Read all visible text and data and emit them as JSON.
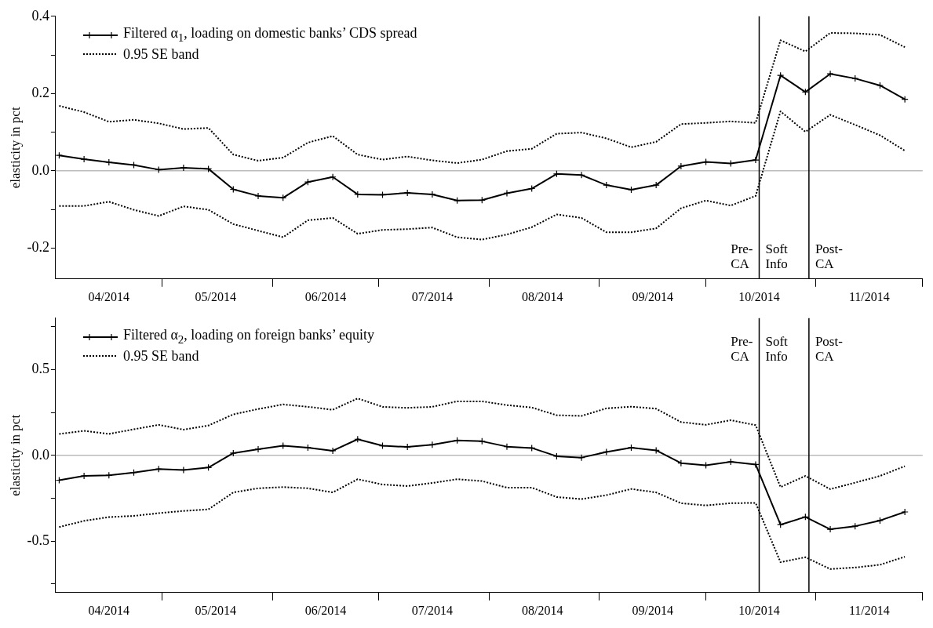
{
  "chart_data": [
    {
      "type": "line",
      "ylabel": "elasticity in pct",
      "legend": "top left",
      "x": [
        "2014-04-02",
        "2014-04-09",
        "2014-04-16",
        "2014-04-23",
        "2014-04-30",
        "2014-05-07",
        "2014-05-14",
        "2014-05-21",
        "2014-05-28",
        "2014-06-04",
        "2014-06-11",
        "2014-06-18",
        "2014-06-25",
        "2014-07-02",
        "2014-07-09",
        "2014-07-16",
        "2014-07-23",
        "2014-07-30",
        "2014-08-06",
        "2014-08-13",
        "2014-08-20",
        "2014-08-27",
        "2014-09-03",
        "2014-09-10",
        "2014-09-17",
        "2014-09-24",
        "2014-10-01",
        "2014-10-08",
        "2014-10-15",
        "2014-10-22",
        "2014-10-29",
        "2014-11-05",
        "2014-11-12",
        "2014-11-19",
        "2014-11-26"
      ],
      "xlim": [
        "2014-04-01",
        "2014-12-01"
      ],
      "xticks": [
        {
          "value": "2014-05-01",
          "label": null
        },
        {
          "value": "2014-06-01",
          "label": null
        },
        {
          "value": "2014-07-01",
          "label": null
        },
        {
          "value": "2014-08-01",
          "label": null
        },
        {
          "value": "2014-09-01",
          "label": null
        },
        {
          "value": "2014-10-01",
          "label": null
        },
        {
          "value": "2014-11-01",
          "label": null
        },
        {
          "value": "2014-12-01",
          "label": null
        },
        {
          "value": "2014-04-16",
          "label": "04/2014"
        },
        {
          "value": "2014-05-16",
          "label": "05/2014"
        },
        {
          "value": "2014-06-16",
          "label": "06/2014"
        },
        {
          "value": "2014-07-16",
          "label": "07/2014"
        },
        {
          "value": "2014-08-16",
          "label": "08/2014"
        },
        {
          "value": "2014-09-16",
          "label": "09/2014"
        },
        {
          "value": "2014-10-16",
          "label": "10/2014"
        },
        {
          "value": "2014-11-16",
          "label": "11/2014"
        }
      ],
      "ylim": [
        -0.28,
        0.4
      ],
      "yticks": [
        {
          "value": -0.2,
          "label": "-0.2"
        },
        {
          "value": -0.1,
          "label": null
        },
        {
          "value": 0,
          "label": "0.0"
        },
        {
          "value": 0.1,
          "label": null
        },
        {
          "value": 0.2,
          "label": "0.2"
        },
        {
          "value": 0.3,
          "label": null
        },
        {
          "value": 0.4,
          "label": "0.4"
        }
      ],
      "series": [
        {
          "name": "Filtered α$_{1}$, loading on domestic banks’ CDS spread",
          "color": "#000000",
          "marker": "cross",
          "line_style": "solid",
          "values": [
            0.04,
            0.03,
            0.022,
            0.015,
            0.003,
            0.008,
            0.005,
            -0.048,
            -0.065,
            -0.07,
            -0.029,
            -0.016,
            -0.061,
            -0.062,
            -0.057,
            -0.061,
            -0.077,
            -0.076,
            -0.058,
            -0.046,
            -0.008,
            -0.011,
            -0.037,
            -0.049,
            -0.037,
            0.012,
            0.023,
            0.019,
            0.028,
            0.247,
            0.204,
            0.251,
            0.239,
            0.221,
            0.185
          ]
        },
        {
          "name": "0.95 SE band",
          "color": "#000000",
          "marker": "none",
          "line_style": "dotted",
          "values": [
            0.168,
            0.152,
            0.127,
            0.132,
            0.123,
            0.108,
            0.111,
            0.042,
            0.026,
            0.034,
            0.073,
            0.09,
            0.042,
            0.029,
            0.037,
            0.027,
            0.02,
            0.029,
            0.051,
            0.057,
            0.096,
            0.099,
            0.084,
            0.061,
            0.075,
            0.121,
            0.124,
            0.128,
            0.124,
            0.338,
            0.309,
            0.357,
            0.356,
            0.352,
            0.32
          ]
        },
        {
          "color": "#000000",
          "marker": "none",
          "line_style": "dotted",
          "values": [
            -0.091,
            -0.091,
            -0.08,
            -0.101,
            -0.117,
            -0.092,
            -0.101,
            -0.138,
            -0.155,
            -0.172,
            -0.128,
            -0.122,
            -0.163,
            -0.153,
            -0.151,
            -0.147,
            -0.172,
            -0.178,
            -0.165,
            -0.146,
            -0.113,
            -0.122,
            -0.159,
            -0.159,
            -0.149,
            -0.097,
            -0.077,
            -0.09,
            -0.065,
            0.154,
            0.101,
            0.145,
            0.119,
            0.092,
            0.052
          ]
        }
      ],
      "ref_lines": [
        {
          "axis": "y",
          "value": 0,
          "color": "#999999"
        },
        {
          "axis": "x",
          "value": "2014-10-16",
          "color": "#000000"
        },
        {
          "axis": "x",
          "value": "2014-10-30",
          "color": "#000000"
        }
      ],
      "annotations": [
        "Pre-\nCA",
        "Soft\nInfo",
        "Post-\nCA"
      ]
    },
    {
      "type": "line",
      "ylabel": "elasticity in pct",
      "legend": "top left",
      "x": [
        "2014-04-02",
        "2014-04-09",
        "2014-04-16",
        "2014-04-23",
        "2014-04-30",
        "2014-05-07",
        "2014-05-14",
        "2014-05-21",
        "2014-05-28",
        "2014-06-04",
        "2014-06-11",
        "2014-06-18",
        "2014-06-25",
        "2014-07-02",
        "2014-07-09",
        "2014-07-16",
        "2014-07-23",
        "2014-07-30",
        "2014-08-06",
        "2014-08-13",
        "2014-08-20",
        "2014-08-27",
        "2014-09-03",
        "2014-09-10",
        "2014-09-17",
        "2014-09-24",
        "2014-10-01",
        "2014-10-08",
        "2014-10-15",
        "2014-10-22",
        "2014-10-29",
        "2014-11-05",
        "2014-11-12",
        "2014-11-19",
        "2014-11-26"
      ],
      "xlim": [
        "2014-04-01",
        "2014-12-01"
      ],
      "xticks": [
        {
          "value": "2014-05-01",
          "label": null
        },
        {
          "value": "2014-06-01",
          "label": null
        },
        {
          "value": "2014-07-01",
          "label": null
        },
        {
          "value": "2014-08-01",
          "label": null
        },
        {
          "value": "2014-09-01",
          "label": null
        },
        {
          "value": "2014-10-01",
          "label": null
        },
        {
          "value": "2014-11-01",
          "label": null
        },
        {
          "value": "2014-12-01",
          "label": null
        },
        {
          "value": "2014-04-16",
          "label": "04/2014"
        },
        {
          "value": "2014-05-16",
          "label": "05/2014"
        },
        {
          "value": "2014-06-16",
          "label": "06/2014"
        },
        {
          "value": "2014-07-16",
          "label": "07/2014"
        },
        {
          "value": "2014-08-16",
          "label": "08/2014"
        },
        {
          "value": "2014-09-16",
          "label": "09/2014"
        },
        {
          "value": "2014-10-16",
          "label": "10/2014"
        },
        {
          "value": "2014-11-16",
          "label": "11/2014"
        }
      ],
      "ylim": [
        -0.8,
        0.8
      ],
      "yticks": [
        {
          "value": -0.75,
          "label": null
        },
        {
          "value": -0.5,
          "label": "-0.5"
        },
        {
          "value": -0.25,
          "label": null
        },
        {
          "value": 0,
          "label": "0.0"
        },
        {
          "value": 0.25,
          "label": null
        },
        {
          "value": 0.5,
          "label": "0.5"
        },
        {
          "value": 0.75,
          "label": null
        }
      ],
      "series": [
        {
          "name": "Filtered α$_{2}$, loading on foreign banks’ equity",
          "color": "#000000",
          "marker": "cross",
          "line_style": "solid",
          "values": [
            -0.145,
            -0.12,
            -0.116,
            -0.1,
            -0.08,
            -0.085,
            -0.071,
            0.013,
            0.036,
            0.056,
            0.045,
            0.027,
            0.094,
            0.056,
            0.049,
            0.062,
            0.087,
            0.082,
            0.051,
            0.043,
            -0.005,
            -0.013,
            0.02,
            0.045,
            0.029,
            -0.045,
            -0.058,
            -0.038,
            -0.053,
            -0.404,
            -0.359,
            -0.431,
            -0.413,
            -0.38,
            -0.33
          ]
        },
        {
          "name": "0.95 SE band",
          "color": "#000000",
          "marker": "none",
          "line_style": "dotted",
          "values": [
            0.125,
            0.143,
            0.125,
            0.152,
            0.178,
            0.15,
            0.174,
            0.239,
            0.27,
            0.297,
            0.283,
            0.266,
            0.332,
            0.283,
            0.277,
            0.283,
            0.315,
            0.315,
            0.293,
            0.279,
            0.234,
            0.23,
            0.274,
            0.284,
            0.272,
            0.194,
            0.178,
            0.205,
            0.176,
            -0.185,
            -0.12,
            -0.197,
            -0.159,
            -0.12,
            -0.063
          ]
        },
        {
          "color": "#000000",
          "marker": "none",
          "line_style": "dotted",
          "values": [
            -0.418,
            -0.382,
            -0.36,
            -0.353,
            -0.337,
            -0.324,
            -0.315,
            -0.216,
            -0.192,
            -0.185,
            -0.192,
            -0.216,
            -0.139,
            -0.17,
            -0.179,
            -0.161,
            -0.139,
            -0.15,
            -0.188,
            -0.188,
            -0.243,
            -0.255,
            -0.232,
            -0.196,
            -0.216,
            -0.279,
            -0.292,
            -0.279,
            -0.277,
            -0.623,
            -0.594,
            -0.663,
            -0.654,
            -0.638,
            -0.591
          ]
        }
      ],
      "ref_lines": [
        {
          "axis": "y",
          "value": 0,
          "color": "#999999"
        },
        {
          "axis": "x",
          "value": "2014-10-16",
          "color": "#000000"
        },
        {
          "axis": "x",
          "value": "2014-10-30",
          "color": "#000000"
        }
      ],
      "annotations": [
        "Pre-\nCA",
        "Soft\nInfo",
        "Post-\nCA"
      ]
    }
  ]
}
